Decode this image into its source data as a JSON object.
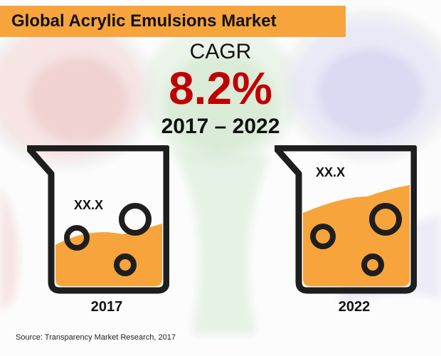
{
  "title": "Global Acrylic Emulsions Market",
  "cagr": {
    "label": "CAGR",
    "value": "8.2%",
    "period": "2017 – 2022"
  },
  "beakers": [
    {
      "year": "2017",
      "value_label": "XX.X"
    },
    {
      "year": "2022",
      "value_label": "XX.X"
    }
  ],
  "source": "Source: Transparency Market Research, 2017",
  "colors": {
    "title_bar": "#f7a43c",
    "cagr_value": "#c00000",
    "liquid": "#f7a43c",
    "beaker_outline": "#1e1e1e"
  }
}
